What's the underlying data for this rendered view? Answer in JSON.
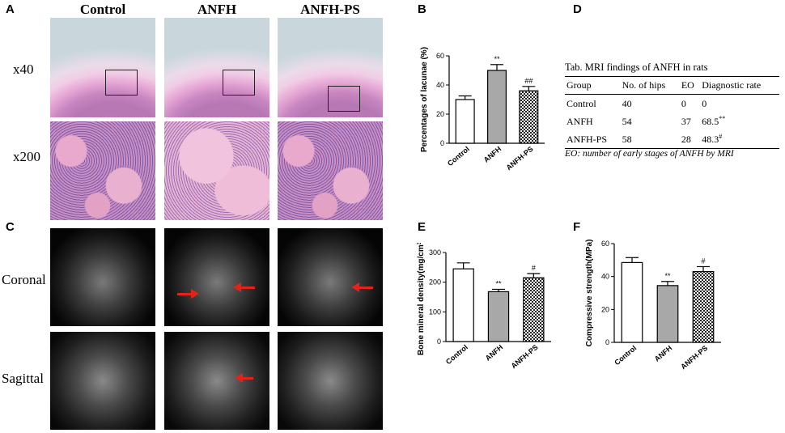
{
  "panels": {
    "A": "A",
    "B": "B",
    "C": "C",
    "D": "D",
    "E": "E",
    "F": "F"
  },
  "histology": {
    "columns": [
      "Control",
      "ANFH",
      "ANFH-PS"
    ],
    "rows": [
      "x40",
      "x200"
    ]
  },
  "mri_images": {
    "rows": [
      "Coronal",
      "Sagittal"
    ]
  },
  "colors": {
    "control": "#ffffff",
    "anfh": "#a8a8a8",
    "anfh_ps": "checker",
    "arrow": "#e2231a"
  },
  "chart_data": [
    {
      "type": "bar",
      "panel": "B",
      "categories": [
        "Control",
        "ANFH",
        "ANFH-PS"
      ],
      "values": [
        30,
        50,
        36
      ],
      "errors": [
        2.5,
        4,
        3
      ],
      "significance": [
        "",
        "**",
        "##"
      ],
      "ylabel": "Percentages of lacunae (%)",
      "ylim": [
        0,
        60
      ],
      "yticks": [
        0,
        20,
        40,
        60
      ]
    },
    {
      "type": "bar",
      "panel": "E",
      "categories": [
        "Control",
        "ANFH",
        "ANFH-PS"
      ],
      "values": [
        245,
        168,
        215
      ],
      "errors": [
        20,
        8,
        14
      ],
      "significance": [
        "",
        "**",
        "#"
      ],
      "ylabel": "Bone mineral density(mg/cm³)",
      "ylim": [
        0,
        300
      ],
      "yticks": [
        0,
        100,
        200,
        300
      ]
    },
    {
      "type": "bar",
      "panel": "F",
      "categories": [
        "Control",
        "ANFH",
        "ANFH-PS"
      ],
      "values": [
        48.5,
        34.5,
        43
      ],
      "errors": [
        3,
        2.5,
        3
      ],
      "significance": [
        "",
        "**",
        "#"
      ],
      "ylabel": "Compressive strength(MPa)",
      "ylim": [
        0,
        60
      ],
      "yticks": [
        0,
        20,
        40,
        60
      ]
    }
  ],
  "table": {
    "title": "Tab. MRI findings of ANFH in rats",
    "headers": [
      "Group",
      "No. of hips",
      "EO",
      "Diagnostic rate"
    ],
    "rows": [
      {
        "group": "Control",
        "hips": "40",
        "eo": "0",
        "rate": "0",
        "sup": ""
      },
      {
        "group": "ANFH",
        "hips": "54",
        "eo": "37",
        "rate": "68.5",
        "sup": "**"
      },
      {
        "group": "ANFH-PS",
        "hips": "58",
        "eo": "28",
        "rate": "48.3",
        "sup": "#"
      }
    ],
    "note": "EO: number of early stages of ANFH by MRI"
  }
}
